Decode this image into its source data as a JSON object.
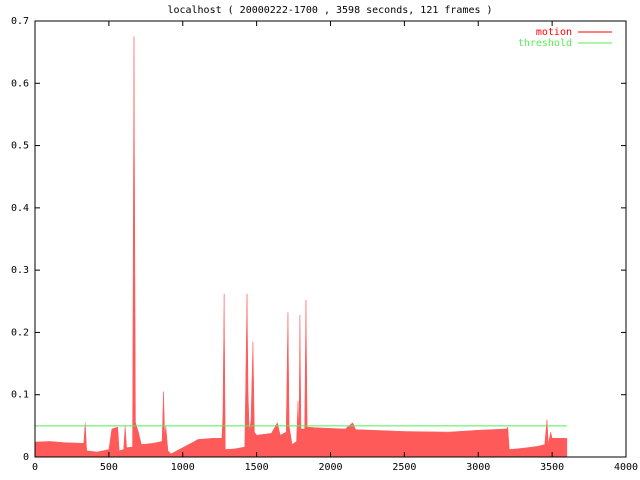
{
  "chart_data": {
    "type": "area",
    "title": "localhost ( 20000222-1700 , 3598 seconds, 121 frames )",
    "xlim": [
      0,
      4000
    ],
    "ylim": [
      0,
      0.7
    ],
    "xticks": [
      0,
      500,
      1000,
      1500,
      2000,
      2500,
      3000,
      3500,
      4000
    ],
    "yticks": [
      0,
      0.1,
      0.2,
      0.3,
      0.4,
      0.5,
      0.6,
      0.7
    ],
    "legend": "top-right",
    "series": [
      {
        "name": "motion",
        "style": "area",
        "color": "#ff5a5a",
        "line_color": "#ff0000",
        "x": [
          0,
          100,
          200,
          330,
          340,
          350,
          420,
          500,
          520,
          560,
          570,
          600,
          610,
          620,
          660,
          670,
          680,
          700,
          720,
          800,
          860,
          870,
          878,
          885,
          900,
          920,
          1000,
          1080,
          1100,
          1200,
          1265,
          1272,
          1280,
          1288,
          1350,
          1420,
          1435,
          1442,
          1450,
          1462,
          1475,
          1485,
          1500,
          1600,
          1640,
          1660,
          1700,
          1712,
          1720,
          1740,
          1770,
          1780,
          1787,
          1793,
          1800,
          1825,
          1834,
          1842,
          1900,
          2100,
          2150,
          2170,
          2500,
          2800,
          3000,
          3190,
          3200,
          3210,
          3300,
          3400,
          3450,
          3465,
          3475,
          3490,
          3500,
          3600
        ],
        "values": [
          0.024,
          0.025,
          0.023,
          0.022,
          0.055,
          0.01,
          0.008,
          0.012,
          0.045,
          0.048,
          0.01,
          0.012,
          0.05,
          0.015,
          0.016,
          0.675,
          0.055,
          0.04,
          0.02,
          0.022,
          0.025,
          0.105,
          0.03,
          0.05,
          0.01,
          0.005,
          0.015,
          0.025,
          0.028,
          0.03,
          0.03,
          0.07,
          0.262,
          0.012,
          0.013,
          0.016,
          0.262,
          0.105,
          0.04,
          0.06,
          0.185,
          0.04,
          0.035,
          0.038,
          0.055,
          0.035,
          0.04,
          0.232,
          0.05,
          0.02,
          0.025,
          0.09,
          0.04,
          0.228,
          0.045,
          0.045,
          0.252,
          0.048,
          0.047,
          0.045,
          0.055,
          0.044,
          0.041,
          0.04,
          0.043,
          0.045,
          0.048,
          0.012,
          0.014,
          0.017,
          0.02,
          0.06,
          0.02,
          0.04,
          0.03,
          0.03
        ]
      },
      {
        "name": "threshold",
        "style": "line",
        "color": "#55ee55",
        "x": [
          0,
          3600
        ],
        "values": [
          0.05,
          0.05
        ]
      }
    ]
  }
}
